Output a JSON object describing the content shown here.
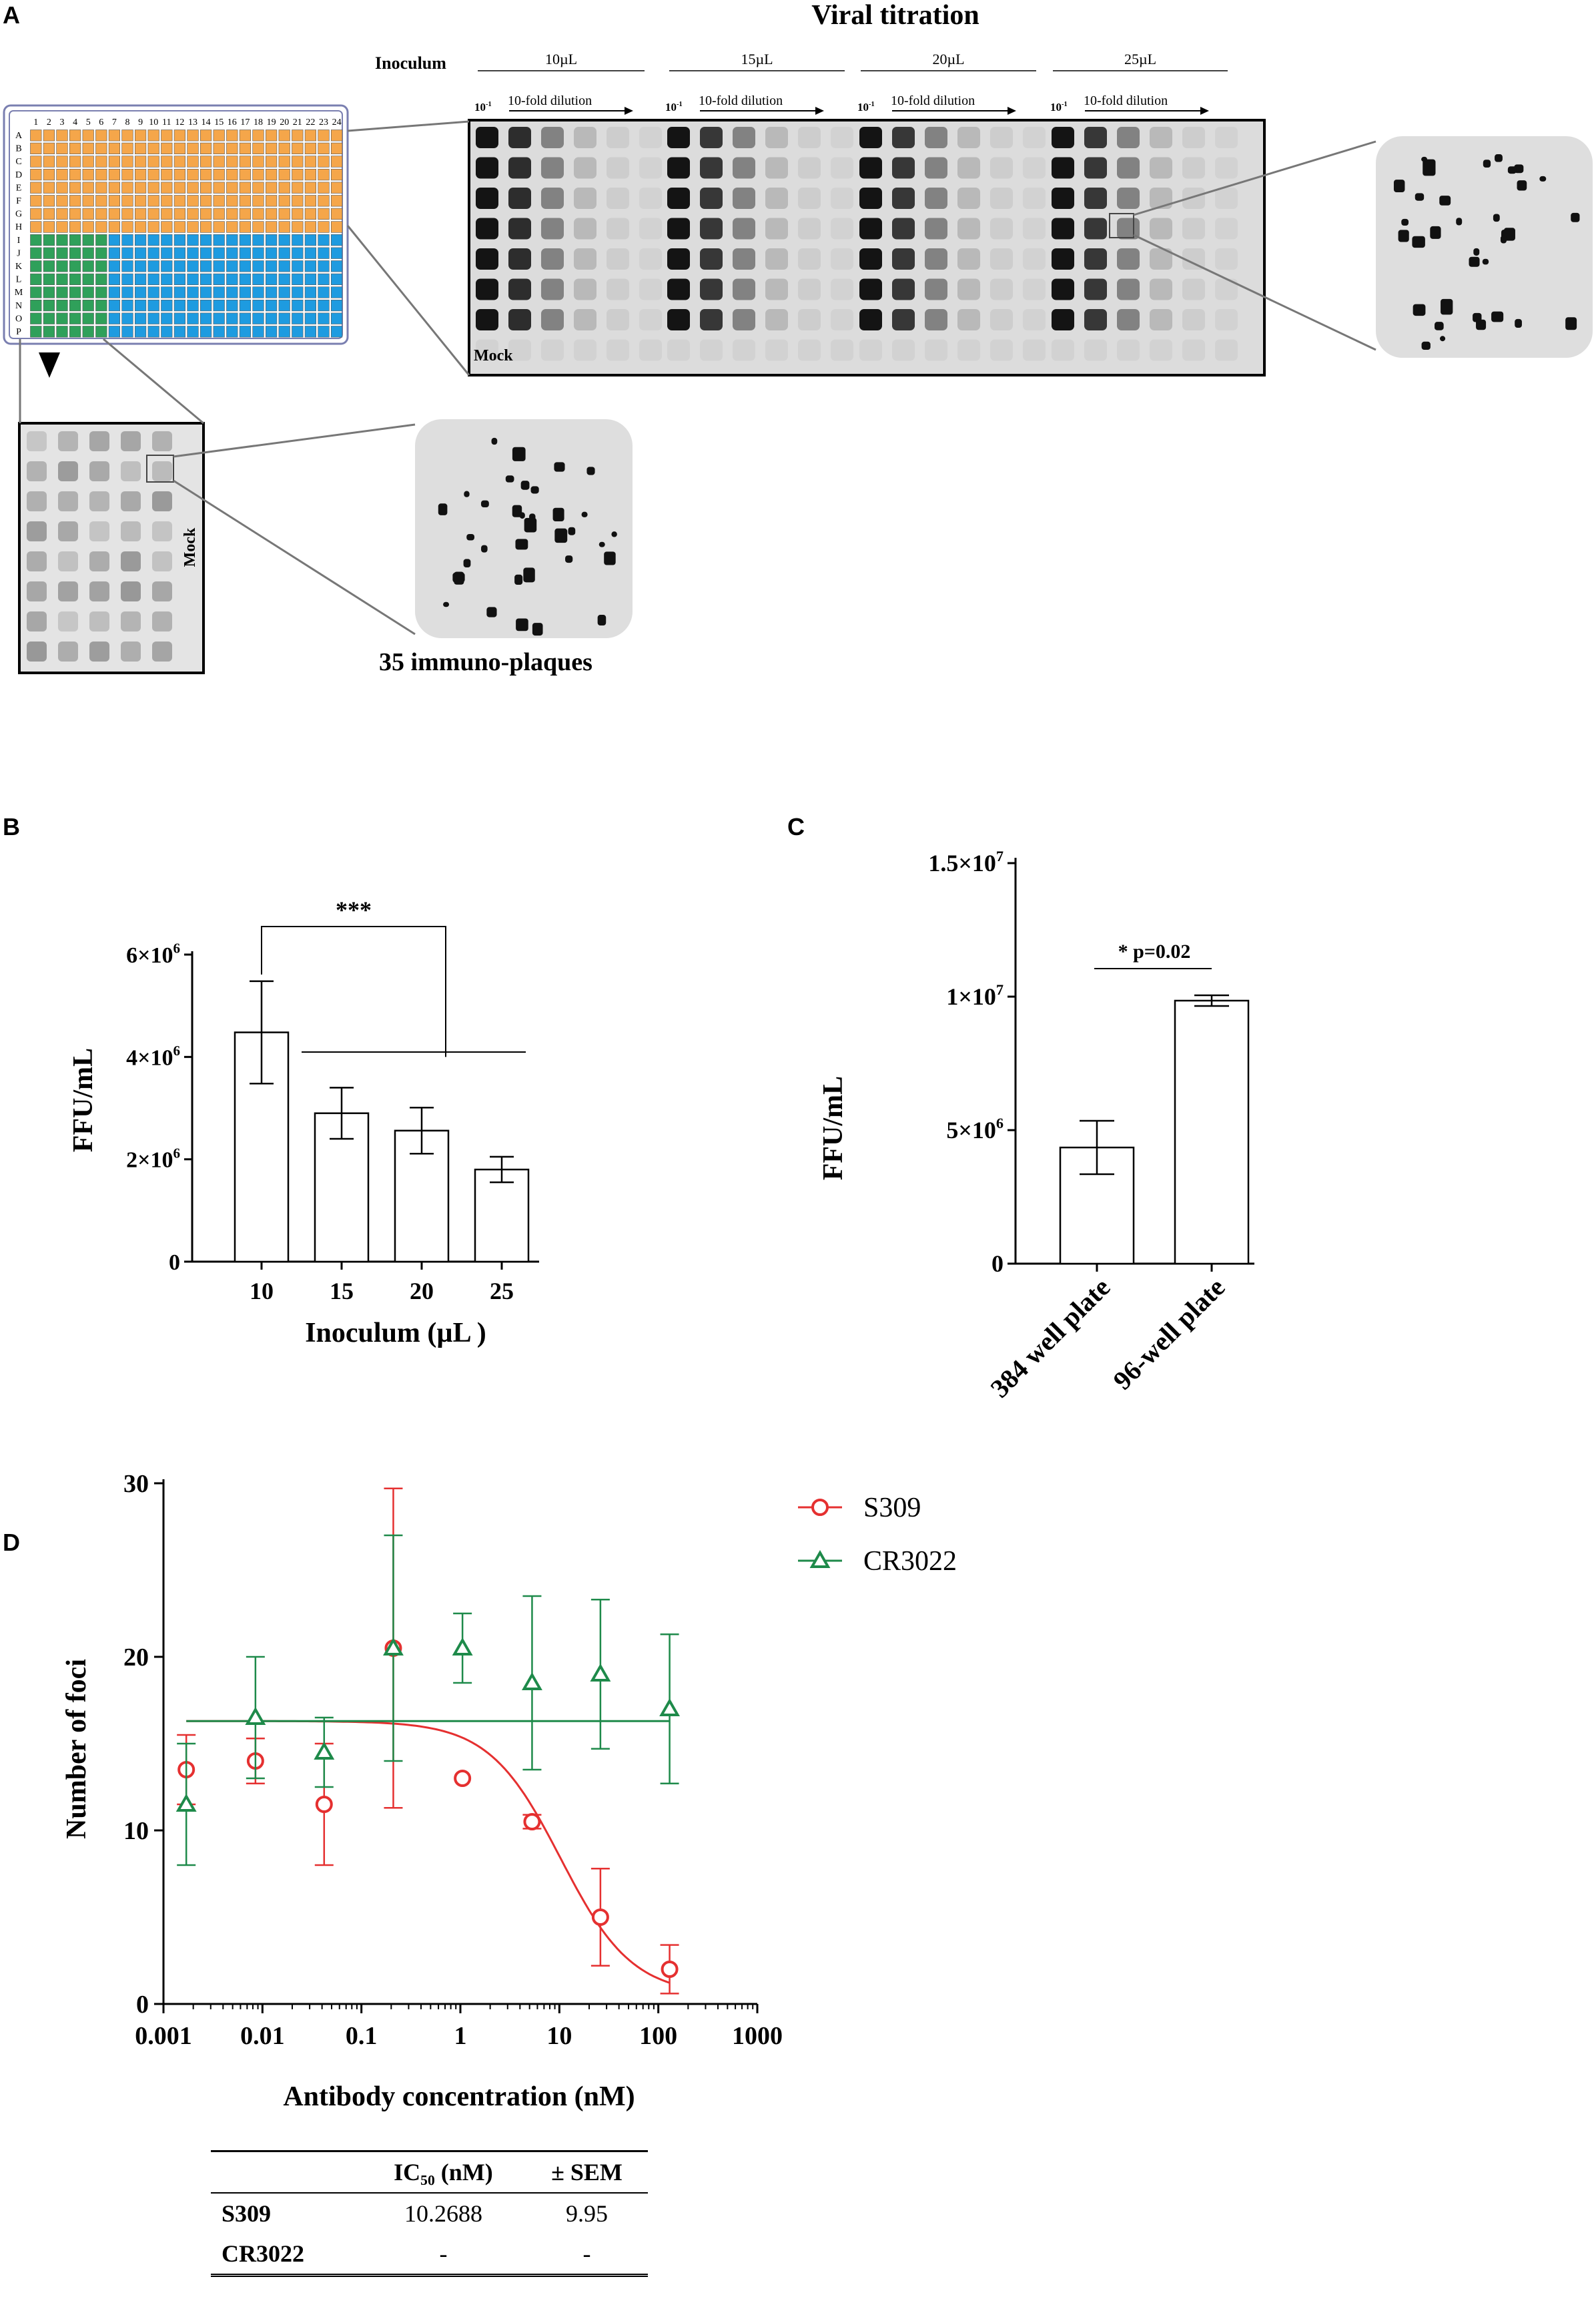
{
  "panel_labels": {
    "a": "A",
    "b": "B",
    "c": "C",
    "d": "D"
  },
  "panel_a": {
    "title": "Viral titration",
    "inoculum_label": "Inoculum",
    "inoculum_groups": [
      "10µL",
      "15µL",
      "20µL",
      "25µL"
    ],
    "dilution_start": "10",
    "dilution_start_exp": "-1",
    "dilution_label": "10-fold dilution",
    "mock_label": "Mock",
    "plate_cols": [
      "1",
      "2",
      "3",
      "4",
      "5",
      "6",
      "7",
      "8",
      "9",
      "10",
      "11",
      "12",
      "13",
      "14",
      "15",
      "16",
      "17",
      "18",
      "19",
      "20",
      "21",
      "22",
      "23",
      "24"
    ],
    "plate_rows": [
      "A",
      "B",
      "C",
      "D",
      "E",
      "F",
      "G",
      "H",
      "I",
      "J",
      "K",
      "L",
      "M",
      "N",
      "O",
      "P"
    ],
    "zoom_caption": "35 immuno-plaques",
    "colors": {
      "orange": "#f5a64a",
      "green": "#2fa05a",
      "blue": "#1e9be0"
    }
  },
  "chart_data": [
    {
      "id": "B",
      "type": "bar",
      "categories": [
        "10",
        "15",
        "20",
        "25"
      ],
      "values": [
        4480000,
        2900000,
        2560000,
        1800000
      ],
      "errors": [
        1000000,
        500000,
        450000,
        250000
      ],
      "xlabel": "Inoculum (µL )",
      "ylabel": "FFU/mL",
      "ylim": [
        0,
        6000000
      ],
      "yticks": [
        {
          "value": 0,
          "base": "0",
          "exp": ""
        },
        {
          "value": 2000000,
          "base": "2×10",
          "exp": "6"
        },
        {
          "value": 4000000,
          "base": "4×10",
          "exp": "6"
        },
        {
          "value": 6000000,
          "base": "6×10",
          "exp": "6"
        }
      ],
      "significance": "***",
      "bar_color": "#ffffff"
    },
    {
      "id": "C",
      "type": "bar",
      "categories": [
        "384 well plate",
        "96-well plate"
      ],
      "values": [
        4350000,
        9850000
      ],
      "errors": [
        1000000,
        200000
      ],
      "xlabel": "",
      "ylabel": "FFU/mL",
      "ylim": [
        0,
        15000000
      ],
      "yticks": [
        {
          "value": 0,
          "base": "0",
          "exp": ""
        },
        {
          "value": 5000000,
          "base": "5×10",
          "exp": "6"
        },
        {
          "value": 10000000,
          "base": "1×10",
          "exp": "7"
        },
        {
          "value": 15000000,
          "base": "1.5×10",
          "exp": "7"
        }
      ],
      "significance": "* p=0.02",
      "bar_color": "#ffffff"
    },
    {
      "id": "D",
      "type": "scatter",
      "x_scale": "log",
      "xlabel": "Antibody concentration (nM)",
      "ylabel": "Number of foci",
      "xlim": [
        0.001,
        1000
      ],
      "ylim": [
        0,
        30
      ],
      "xtick_labels": [
        "0.001",
        "0.01",
        "0.1",
        "1",
        "10",
        "100",
        "1000"
      ],
      "ytick_labels": [
        "0",
        "10",
        "20",
        "30"
      ],
      "legend_position": "right",
      "series": [
        {
          "name": "S309",
          "marker": "circle",
          "color": "#e53030",
          "x": [
            0.0017,
            0.0085,
            0.042,
            0.21,
            1.05,
            5.3,
            26,
            130
          ],
          "y": [
            13.5,
            14.0,
            11.5,
            20.5,
            13.0,
            10.5,
            5.0,
            2.0
          ],
          "err": [
            2.0,
            1.3,
            3.5,
            9.2,
            0.0,
            0.4,
            2.8,
            1.4
          ],
          "fit": {
            "type": "sigmoid",
            "top": 16.3,
            "bottom": 0.5,
            "ic50": 10.27,
            "hill": 1.2
          }
        },
        {
          "name": "CR3022",
          "marker": "triangle",
          "color": "#1e8a4a",
          "x": [
            0.0017,
            0.0085,
            0.042,
            0.21,
            1.05,
            5.3,
            26,
            130
          ],
          "y": [
            11.5,
            16.5,
            14.5,
            20.5,
            20.5,
            18.5,
            19.0,
            17.0
          ],
          "err": [
            3.5,
            3.5,
            2.0,
            6.5,
            2.0,
            5.0,
            4.3,
            4.3
          ],
          "fit": {
            "type": "constant",
            "value": 16.3
          }
        }
      ]
    }
  ],
  "ic50_table": {
    "headers": [
      "",
      "IC₅₀ (nM)",
      "± SEM"
    ],
    "rows": [
      {
        "name": "S309",
        "ic50": "10.2688",
        "sem": "9.95"
      },
      {
        "name": "CR3022",
        "ic50": "-",
        "sem": "-"
      }
    ]
  }
}
